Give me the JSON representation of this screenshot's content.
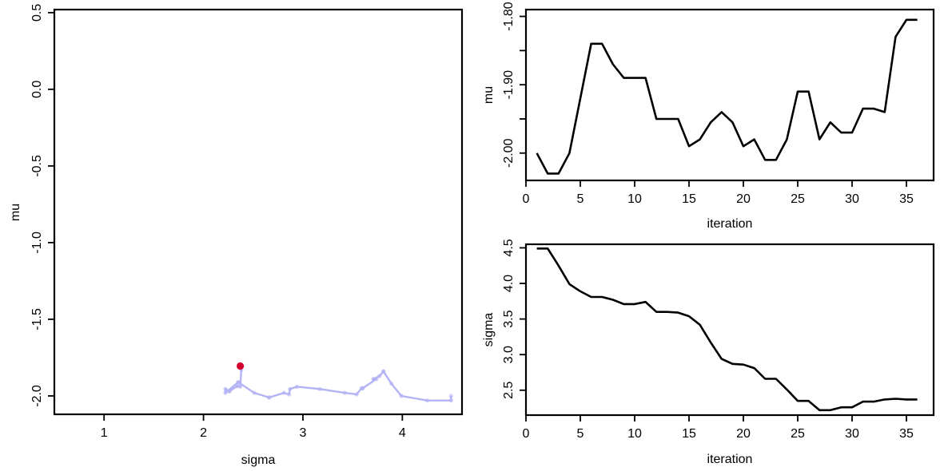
{
  "chart_data": [
    {
      "type": "scatter",
      "id": "joint",
      "title": "",
      "xlabel": "sigma",
      "ylabel": "mu",
      "xlim": [
        0.5,
        4.6
      ],
      "ylim": [
        -2.12,
        0.52
      ],
      "xticks": [
        1,
        2,
        3,
        4
      ],
      "xtick_labels": [
        "1",
        "2",
        "3",
        "4"
      ],
      "yticks": [
        -2.0,
        -1.5,
        -1.0,
        -0.5,
        0.0,
        0.5
      ],
      "ytick_labels": [
        "-2.0",
        "-1.5",
        "-1.0",
        "-0.5",
        "0.0",
        "0.5"
      ],
      "grid": false,
      "path_color": "#b3b3f5",
      "current_color": "#d3002d",
      "x": [
        4.49,
        4.49,
        4.25,
        3.99,
        3.89,
        3.81,
        3.81,
        3.77,
        3.71,
        3.71,
        3.74,
        3.6,
        3.6,
        3.59,
        3.54,
        3.42,
        3.17,
        2.94,
        2.87,
        2.86,
        2.81,
        2.66,
        2.66,
        2.51,
        2.35,
        2.35,
        2.22,
        2.22,
        2.26,
        2.26,
        2.34,
        2.34,
        2.37,
        2.38,
        2.37,
        2.37
      ],
      "y": [
        -2.0,
        -2.03,
        -2.03,
        -2.0,
        -1.92,
        -1.84,
        -1.84,
        -1.87,
        -1.89,
        -1.89,
        -1.89,
        -1.95,
        -1.95,
        -1.95,
        -1.99,
        -1.98,
        -1.955,
        -1.94,
        -1.955,
        -1.99,
        -1.98,
        -2.01,
        -2.01,
        -1.98,
        -1.91,
        -1.91,
        -1.98,
        -1.955,
        -1.97,
        -1.97,
        -1.935,
        -1.935,
        -1.94,
        -1.83,
        -1.805,
        -1.805
      ],
      "current": {
        "x": 2.37,
        "y": -1.805
      }
    },
    {
      "type": "line",
      "id": "mu_trace",
      "title": "",
      "xlabel": "iteration",
      "ylabel": "mu",
      "xlim": [
        0,
        37.5
      ],
      "ylim": [
        -2.04,
        -1.79
      ],
      "xticks": [
        0,
        5,
        10,
        15,
        20,
        25,
        30,
        35
      ],
      "xtick_labels": [
        "0",
        "5",
        "10",
        "15",
        "20",
        "25",
        "30",
        "35"
      ],
      "yticks": [
        -2.0,
        -1.95,
        -1.9,
        -1.85,
        -1.8
      ],
      "ytick_labels": [
        "-2.00",
        "",
        "-1.90",
        "",
        "-1.80"
      ],
      "grid": false,
      "series": [
        {
          "x": [
            1,
            2,
            3,
            4,
            5,
            6,
            7,
            8,
            9,
            10,
            11,
            12,
            13,
            14,
            15,
            16,
            17,
            18,
            19,
            20,
            21,
            22,
            23,
            24,
            25,
            26,
            27,
            28,
            29,
            30,
            31,
            32,
            33,
            34,
            35,
            36
          ],
          "values": [
            -2.0,
            -2.03,
            -2.03,
            -2.0,
            -1.92,
            -1.84,
            -1.84,
            -1.87,
            -1.89,
            -1.89,
            -1.89,
            -1.95,
            -1.95,
            -1.95,
            -1.99,
            -1.98,
            -1.955,
            -1.94,
            -1.955,
            -1.99,
            -1.98,
            -2.01,
            -2.01,
            -1.98,
            -1.91,
            -1.91,
            -1.98,
            -1.955,
            -1.97,
            -1.97,
            -1.935,
            -1.935,
            -1.94,
            -1.83,
            -1.805,
            -1.805
          ]
        }
      ]
    },
    {
      "type": "line",
      "id": "sigma_trace",
      "title": "",
      "xlabel": "iteration",
      "ylabel": "sigma",
      "xlim": [
        0,
        37.5
      ],
      "ylim": [
        2.15,
        4.55
      ],
      "xticks": [
        0,
        5,
        10,
        15,
        20,
        25,
        30,
        35
      ],
      "xtick_labels": [
        "0",
        "5",
        "10",
        "15",
        "20",
        "25",
        "30",
        "35"
      ],
      "yticks": [
        2.5,
        3.0,
        3.5,
        4.0,
        4.5
      ],
      "ytick_labels": [
        "2.5",
        "3.0",
        "3.5",
        "4.0",
        "4.5"
      ],
      "grid": false,
      "series": [
        {
          "x": [
            1,
            2,
            3,
            4,
            5,
            6,
            7,
            8,
            9,
            10,
            11,
            12,
            13,
            14,
            15,
            16,
            17,
            18,
            19,
            20,
            21,
            22,
            23,
            24,
            25,
            26,
            27,
            28,
            29,
            30,
            31,
            32,
            33,
            34,
            35,
            36
          ],
          "values": [
            4.49,
            4.49,
            4.25,
            3.99,
            3.89,
            3.81,
            3.81,
            3.77,
            3.71,
            3.71,
            3.74,
            3.6,
            3.6,
            3.59,
            3.54,
            3.42,
            3.17,
            2.94,
            2.87,
            2.86,
            2.81,
            2.66,
            2.66,
            2.51,
            2.35,
            2.35,
            2.22,
            2.22,
            2.26,
            2.26,
            2.34,
            2.34,
            2.37,
            2.38,
            2.37,
            2.37
          ]
        }
      ]
    }
  ]
}
